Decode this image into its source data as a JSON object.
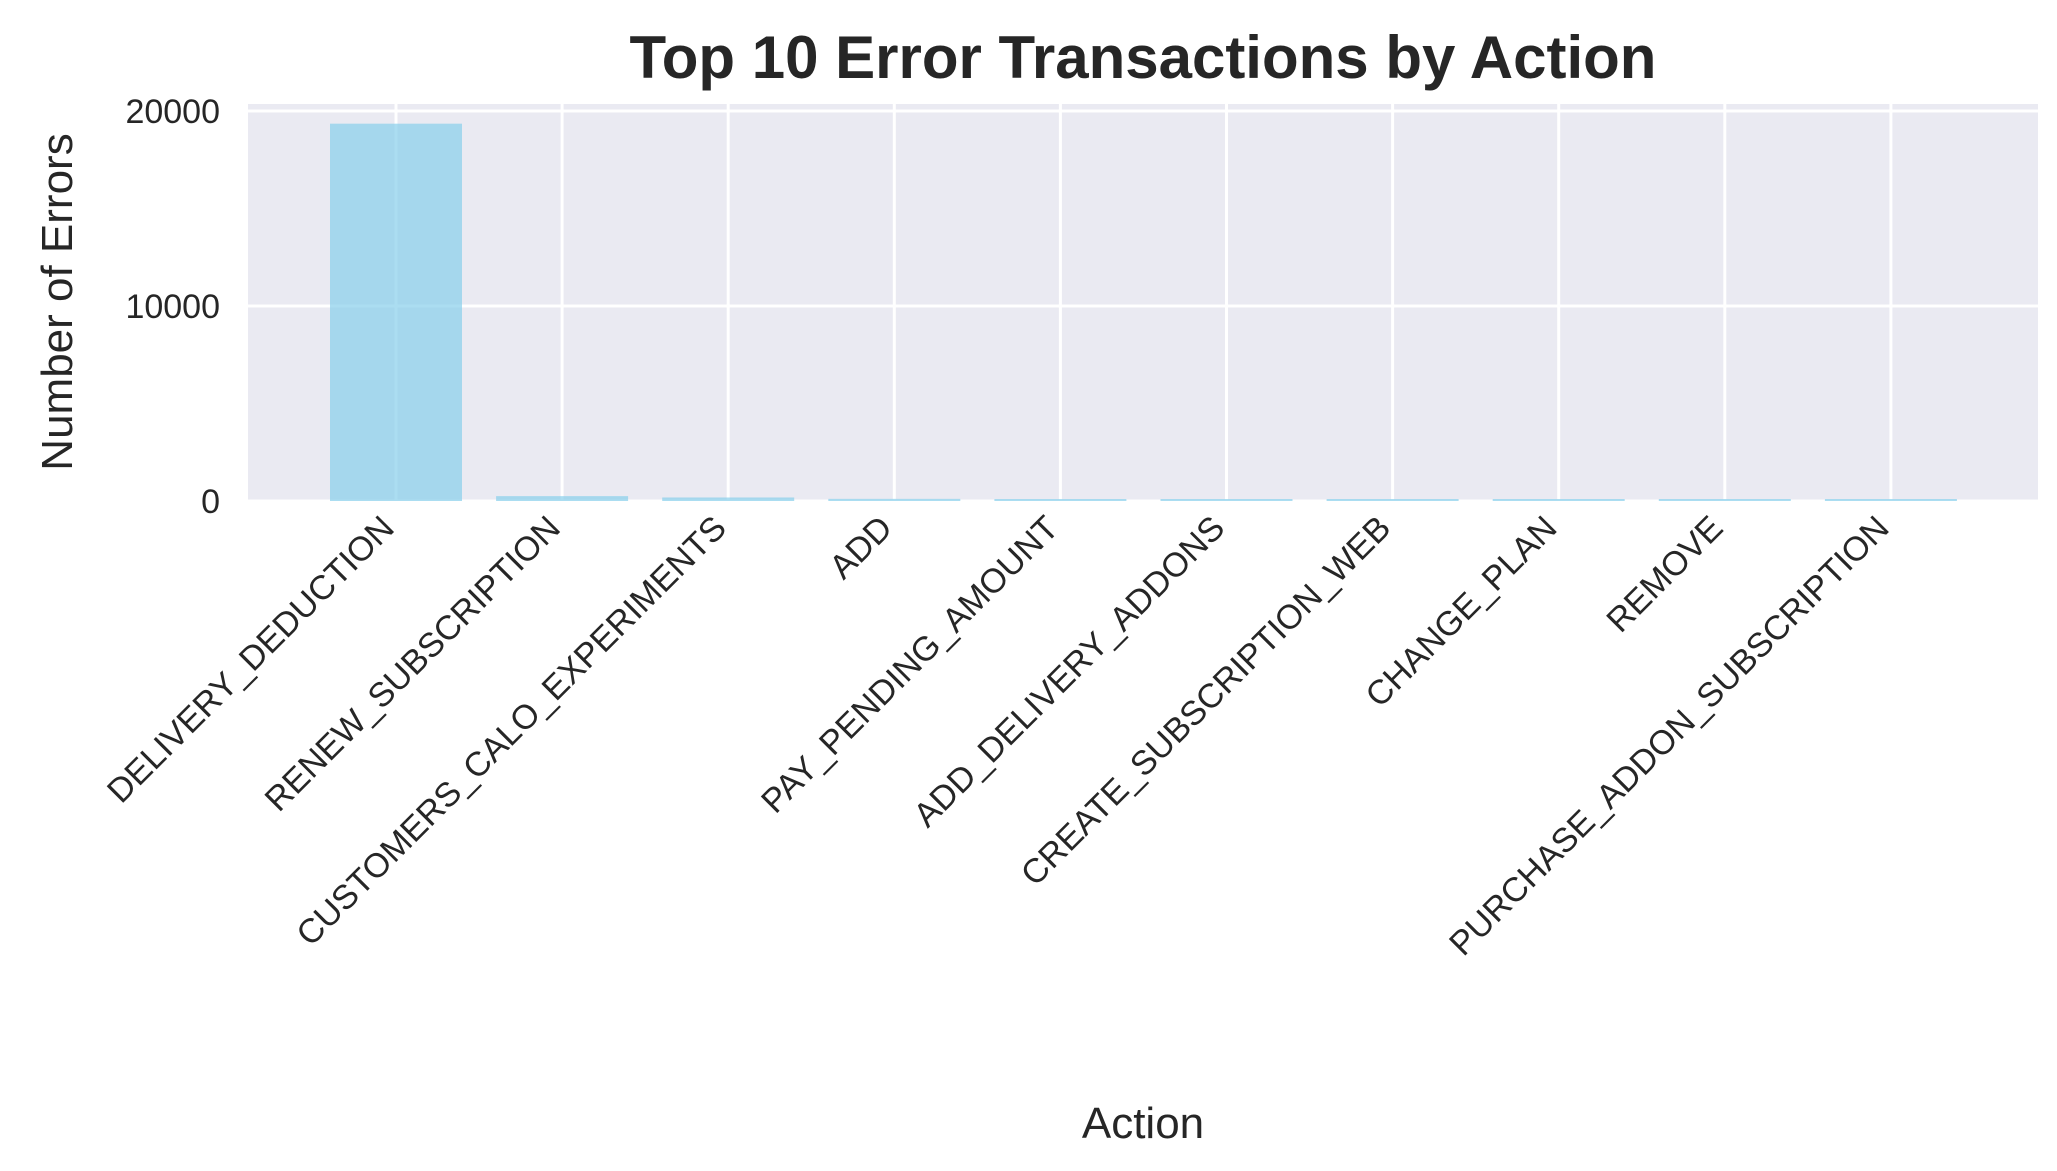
{
  "chart_data": {
    "type": "bar",
    "title": "Top 10 Error Transactions by Action",
    "xlabel": "Action",
    "ylabel": "Number of Errors",
    "categories": [
      "DELIVERY_DEDUCTION",
      "RENEW_SUBSCRIPTION",
      "CUSTOMERS_CALO_EXPERIMENTS",
      "ADD",
      "PAY_PENDING_AMOUNT",
      "ADD_DELIVERY_ADDONS",
      "CREATE_SUBSCRIPTION_WEB",
      "CHANGE_PLAN",
      "REMOVE",
      "PURCHASE_ADDON_SUBSCRIPTION"
    ],
    "values": [
      19350,
      250,
      180,
      110,
      100,
      90,
      60,
      50,
      45,
      40
    ],
    "ylim": [
      0,
      20000
    ],
    "yticks": [
      0,
      10000,
      20000
    ],
    "ytick_labels": [
      "0",
      "10000",
      "20000"
    ],
    "grid": true,
    "bar_color": "#87CEEB",
    "plot_background": "#EAEAF2"
  }
}
